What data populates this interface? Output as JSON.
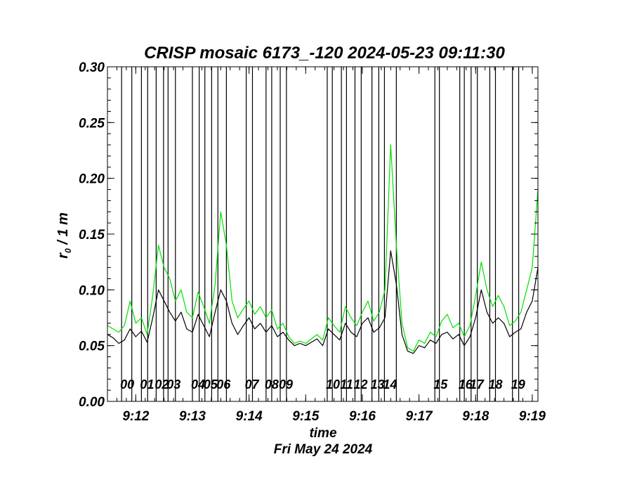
{
  "chart_data": {
    "type": "line",
    "title": "CRISP mosaic 6173_-120 2024-05-23 09:11:30",
    "xlabel": "time",
    "date_label": "Fri May 24 2024",
    "ylabel_main": "r",
    "ylabel_sub": "0",
    "ylabel_rest": " / 1 m",
    "xlim_min": [
      11.5,
      19.1
    ],
    "ylim": [
      0,
      0.3
    ],
    "y_ticks": [
      {
        "v": 0.0,
        "label": "0.00"
      },
      {
        "v": 0.05,
        "label": "0.05"
      },
      {
        "v": 0.1,
        "label": "0.10"
      },
      {
        "v": 0.15,
        "label": "0.15"
      },
      {
        "v": 0.2,
        "label": "0.20"
      },
      {
        "v": 0.25,
        "label": "0.25"
      },
      {
        "v": 0.3,
        "label": "0.30"
      }
    ],
    "x_ticks": [
      {
        "v": 12,
        "label": "9:12"
      },
      {
        "v": 13,
        "label": "9:13"
      },
      {
        "v": 14,
        "label": "9:14"
      },
      {
        "v": 15,
        "label": "9:15"
      },
      {
        "v": 16,
        "label": "9:16"
      },
      {
        "v": 17,
        "label": "9:17"
      },
      {
        "v": 18,
        "label": "9:18"
      },
      {
        "v": 19,
        "label": "9:19"
      }
    ],
    "markers": [
      {
        "label": "00",
        "start": 11.75,
        "end": 11.93
      },
      {
        "label": "01",
        "start": 12.1,
        "end": 12.21
      },
      {
        "label": "02",
        "start": 12.36,
        "end": 12.49
      },
      {
        "label": "03",
        "start": 12.57,
        "end": 12.7
      },
      {
        "label": "04",
        "start": 13.0,
        "end": 13.12
      },
      {
        "label": "05",
        "start": 13.22,
        "end": 13.34
      },
      {
        "label": "06",
        "start": 13.45,
        "end": 13.6
      },
      {
        "label": "07",
        "start": 13.95,
        "end": 14.06
      },
      {
        "label": "08",
        "start": 14.3,
        "end": 14.4
      },
      {
        "label": "09",
        "start": 14.55,
        "end": 14.66
      },
      {
        "label": "10",
        "start": 15.38,
        "end": 15.47
      },
      {
        "label": "11",
        "start": 15.63,
        "end": 15.72
      },
      {
        "label": "12",
        "start": 15.87,
        "end": 15.98
      },
      {
        "label": "13",
        "start": 16.17,
        "end": 16.29
      },
      {
        "label": "14",
        "start": 16.39,
        "end": 16.6
      },
      {
        "label": "15",
        "start": 17.28,
        "end": 17.36
      },
      {
        "label": "16",
        "start": 17.72,
        "end": 17.8
      },
      {
        "label": "17",
        "start": 17.92,
        "end": 18.03
      },
      {
        "label": "18",
        "start": 18.25,
        "end": 18.35
      },
      {
        "label": "19",
        "start": 18.65,
        "end": 18.76
      }
    ],
    "series": [
      {
        "name": "r0 (black)",
        "color": "#000000",
        "x": [
          11.5,
          11.6,
          11.7,
          11.8,
          11.9,
          12.0,
          12.1,
          12.2,
          12.3,
          12.4,
          12.5,
          12.6,
          12.7,
          12.8,
          12.9,
          13.0,
          13.1,
          13.2,
          13.3,
          13.4,
          13.5,
          13.6,
          13.7,
          13.8,
          13.9,
          14.0,
          14.1,
          14.2,
          14.3,
          14.4,
          14.5,
          14.6,
          14.7,
          14.8,
          14.9,
          15.0,
          15.1,
          15.2,
          15.3,
          15.4,
          15.5,
          15.6,
          15.7,
          15.8,
          15.9,
          16.0,
          16.1,
          16.2,
          16.3,
          16.4,
          16.5,
          16.6,
          16.7,
          16.8,
          16.9,
          17.0,
          17.1,
          17.2,
          17.3,
          17.4,
          17.5,
          17.6,
          17.7,
          17.8,
          17.9,
          18.0,
          18.1,
          18.2,
          18.3,
          18.4,
          18.5,
          18.6,
          18.7,
          18.8,
          18.9,
          19.0,
          19.1
        ],
        "y": [
          0.06,
          0.057,
          0.052,
          0.055,
          0.065,
          0.058,
          0.063,
          0.053,
          0.075,
          0.1,
          0.09,
          0.08,
          0.072,
          0.08,
          0.065,
          0.062,
          0.078,
          0.068,
          0.058,
          0.08,
          0.1,
          0.09,
          0.07,
          0.06,
          0.068,
          0.075,
          0.065,
          0.07,
          0.062,
          0.068,
          0.058,
          0.062,
          0.055,
          0.05,
          0.052,
          0.05,
          0.053,
          0.056,
          0.05,
          0.065,
          0.06,
          0.055,
          0.07,
          0.062,
          0.058,
          0.07,
          0.075,
          0.062,
          0.066,
          0.075,
          0.135,
          0.105,
          0.06,
          0.045,
          0.043,
          0.05,
          0.048,
          0.055,
          0.052,
          0.06,
          0.062,
          0.056,
          0.06,
          0.05,
          0.058,
          0.075,
          0.1,
          0.08,
          0.07,
          0.075,
          0.07,
          0.058,
          0.062,
          0.065,
          0.08,
          0.09,
          0.12
        ]
      },
      {
        "name": "r0 (green)",
        "color": "#00e000",
        "x": [
          11.5,
          11.6,
          11.7,
          11.8,
          11.9,
          12.0,
          12.1,
          12.2,
          12.3,
          12.4,
          12.5,
          12.6,
          12.7,
          12.8,
          12.9,
          13.0,
          13.1,
          13.2,
          13.3,
          13.4,
          13.5,
          13.6,
          13.7,
          13.8,
          13.9,
          14.0,
          14.1,
          14.2,
          14.3,
          14.4,
          14.5,
          14.6,
          14.7,
          14.8,
          14.9,
          15.0,
          15.1,
          15.2,
          15.3,
          15.4,
          15.5,
          15.6,
          15.7,
          15.8,
          15.9,
          16.0,
          16.1,
          16.2,
          16.3,
          16.4,
          16.5,
          16.6,
          16.7,
          16.8,
          16.9,
          17.0,
          17.1,
          17.2,
          17.3,
          17.4,
          17.5,
          17.6,
          17.7,
          17.8,
          17.9,
          18.0,
          18.1,
          18.2,
          18.3,
          18.4,
          18.5,
          18.6,
          18.7,
          18.8,
          18.9,
          19.0,
          19.1
        ],
        "y": [
          0.068,
          0.065,
          0.062,
          0.068,
          0.09,
          0.07,
          0.075,
          0.06,
          0.095,
          0.14,
          0.12,
          0.11,
          0.09,
          0.1,
          0.08,
          0.075,
          0.098,
          0.085,
          0.07,
          0.105,
          0.17,
          0.14,
          0.09,
          0.075,
          0.083,
          0.09,
          0.078,
          0.085,
          0.075,
          0.082,
          0.065,
          0.07,
          0.058,
          0.052,
          0.054,
          0.052,
          0.056,
          0.06,
          0.055,
          0.075,
          0.068,
          0.062,
          0.085,
          0.075,
          0.068,
          0.08,
          0.09,
          0.072,
          0.08,
          0.1,
          0.23,
          0.14,
          0.07,
          0.048,
          0.045,
          0.055,
          0.052,
          0.062,
          0.058,
          0.072,
          0.078,
          0.066,
          0.07,
          0.058,
          0.068,
          0.095,
          0.125,
          0.1,
          0.085,
          0.095,
          0.085,
          0.068,
          0.072,
          0.08,
          0.1,
          0.12,
          0.19
        ]
      }
    ]
  }
}
